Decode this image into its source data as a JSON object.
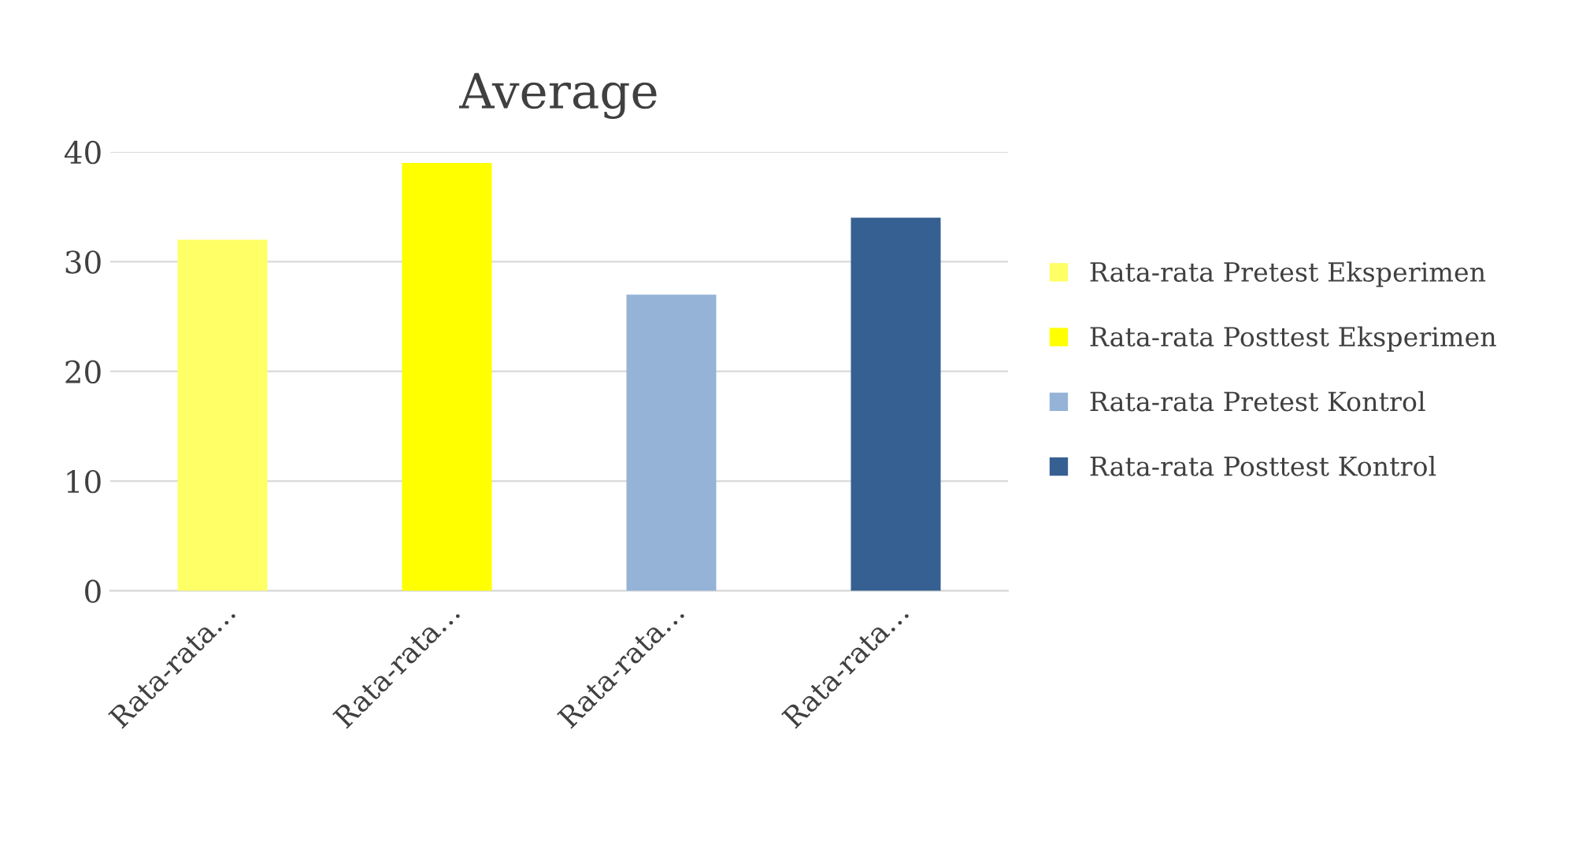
{
  "chart_data": {
    "type": "bar",
    "title": "Average",
    "categories": [
      "Rata-rata…",
      "Rata-rata…",
      "Rata-rata…",
      "Rata-rata…"
    ],
    "series": [
      {
        "name": "Rata-rata Pretest Eksperimen",
        "color": "#ffff66",
        "values": [
          32,
          null,
          null,
          null
        ]
      },
      {
        "name": "Rata-rata Posttest Eksperimen",
        "color": "#ffff00",
        "values": [
          null,
          39,
          null,
          null
        ]
      },
      {
        "name": "Rata-rata Pretest Kontrol",
        "color": "#95b3d7",
        "values": [
          null,
          null,
          27,
          null
        ]
      },
      {
        "name": "Rata-rata Posttest Kontrol",
        "color": "#366092",
        "values": [
          null,
          null,
          null,
          34
        ]
      }
    ],
    "ylim": [
      0,
      40
    ],
    "yticks": [
      0,
      10,
      20,
      30,
      40
    ],
    "grid": "y",
    "legend": "right"
  }
}
